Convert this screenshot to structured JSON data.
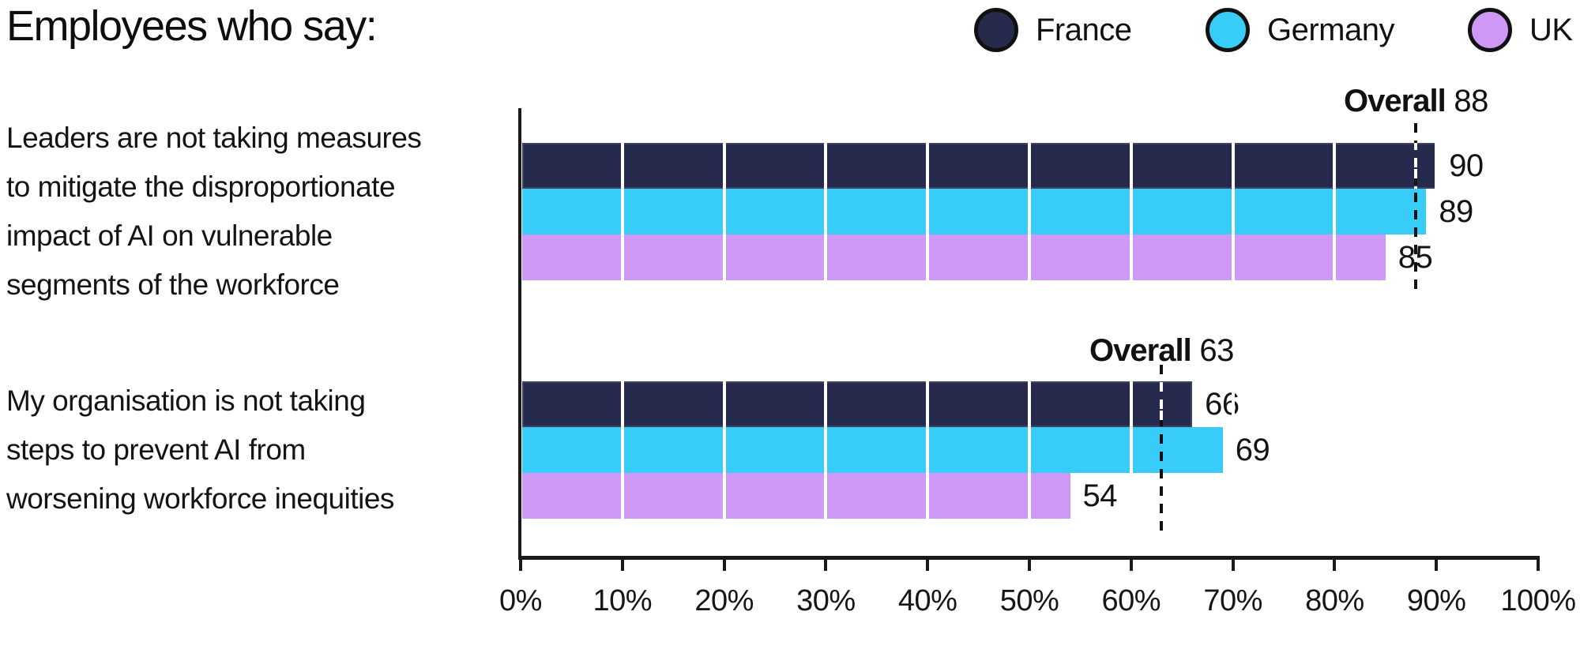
{
  "title": "Employees who say:",
  "legend": [
    {
      "label": "France",
      "color": "#262B4E"
    },
    {
      "label": "Germany",
      "color": "#38CDF8"
    },
    {
      "label": "UK",
      "color": "#CE99F6"
    }
  ],
  "chart_data": {
    "type": "bar",
    "orientation": "horizontal",
    "title": "Employees who say:",
    "xlabel": "",
    "ylabel": "",
    "xlim": [
      0,
      100
    ],
    "x_ticks": [
      "0%",
      "10%",
      "20%",
      "30%",
      "40%",
      "50%",
      "60%",
      "70%",
      "80%",
      "90%",
      "100%"
    ],
    "grid": "white vertical lines every 10% drawn over bars",
    "legend_position": "top-right",
    "series_names": [
      "France",
      "Germany",
      "UK"
    ],
    "groups": [
      {
        "label": "Leaders are not taking measures to mitigate the disproportionate impact of AI on vulnerable segments of the workforce",
        "label_lines": [
          "Leaders are not taking measures",
          "to mitigate the disproportionate",
          "impact of AI on vulnerable",
          "segments of the workforce"
        ],
        "values": [
          90,
          89,
          85
        ],
        "overall_label": "Overall",
        "overall": 88
      },
      {
        "label": "My organisation is not taking steps to prevent AI from worsening workforce inequities",
        "label_lines": [
          "My organisation is not taking",
          "steps to prevent AI from",
          "worsening workforce inequities"
        ],
        "values": [
          66,
          69,
          54
        ],
        "overall_label": "Overall",
        "overall": 63
      }
    ]
  },
  "colors": {
    "france": "#262B4E",
    "france_border": "#3D4366",
    "germany": "#38CDF8",
    "uk": "#CE99F6",
    "axis": "#1A1A1A",
    "dash": "#111111",
    "dash_on_navy": "#FFFFFF",
    "text": "#111111"
  }
}
